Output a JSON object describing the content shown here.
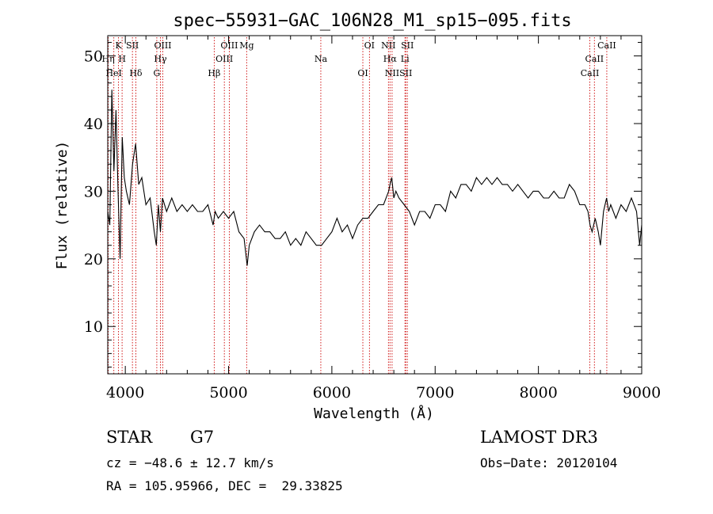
{
  "chart_data": {
    "type": "line",
    "title": "spec−55931−GAC_106N28_M1_sp15−095.fits",
    "xlabel": "Wavelength (Å)",
    "ylabel": "Flux (relative)",
    "xlim": [
      3830,
      9000
    ],
    "ylim": [
      3,
      53
    ],
    "xticks": [
      4000,
      5000,
      6000,
      7000,
      8000,
      9000
    ],
    "yticks": [
      10,
      20,
      30,
      40,
      50
    ],
    "grid": false,
    "legend": "none",
    "line_color": "#000000",
    "marker_color": "#cc0000",
    "series": [
      {
        "x": [
          3830,
          3850,
          3870,
          3890,
          3910,
          3930,
          3950,
          3970,
          3990,
          4010,
          4040,
          4070,
          4100,
          4130,
          4160,
          4200,
          4240,
          4280,
          4300,
          4320,
          4340,
          4360,
          4400,
          4450,
          4500,
          4550,
          4600,
          4650,
          4700,
          4750,
          4800,
          4850,
          4870,
          4900,
          4950,
          5000,
          5050,
          5100,
          5150,
          5180,
          5200,
          5250,
          5300,
          5350,
          5400,
          5450,
          5500,
          5550,
          5600,
          5650,
          5700,
          5750,
          5800,
          5850,
          5900,
          5950,
          6000,
          6050,
          6100,
          6150,
          6200,
          6250,
          6300,
          6350,
          6400,
          6450,
          6500,
          6550,
          6563,
          6580,
          6600,
          6620,
          6650,
          6700,
          6750,
          6800,
          6850,
          6900,
          6950,
          7000,
          7050,
          7100,
          7150,
          7200,
          7250,
          7300,
          7350,
          7400,
          7450,
          7500,
          7550,
          7600,
          7650,
          7700,
          7750,
          7800,
          7850,
          7900,
          7950,
          8000,
          8050,
          8100,
          8150,
          8200,
          8250,
          8300,
          8350,
          8400,
          8450,
          8480,
          8500,
          8520,
          8550,
          8580,
          8600,
          8630,
          8660,
          8680,
          8700,
          8750,
          8800,
          8850,
          8900,
          8950,
          8980,
          9000
        ],
        "y": [
          27,
          25,
          45,
          33,
          42,
          30,
          20,
          38,
          32,
          30,
          28,
          34,
          37,
          31,
          32,
          28,
          29,
          24,
          22,
          28,
          24,
          29,
          27,
          29,
          27,
          28,
          27,
          28,
          27,
          27,
          28,
          25,
          27,
          26,
          27,
          26,
          27,
          24,
          23,
          19,
          22,
          24,
          25,
          24,
          24,
          23,
          23,
          24,
          22,
          23,
          22,
          24,
          23,
          22,
          22,
          23,
          24,
          26,
          24,
          25,
          23,
          25,
          26,
          26,
          27,
          28,
          28,
          30,
          31,
          32,
          29,
          30,
          29,
          28,
          27,
          25,
          27,
          27,
          26,
          28,
          28,
          27,
          30,
          29,
          31,
          31,
          30,
          32,
          31,
          32,
          31,
          32,
          31,
          31,
          30,
          31,
          30,
          29,
          30,
          30,
          29,
          29,
          30,
          29,
          29,
          31,
          30,
          28,
          28,
          27,
          25,
          24,
          26,
          24,
          22,
          27,
          29,
          27,
          28,
          26,
          28,
          27,
          29,
          27,
          22,
          25
        ]
      }
    ],
    "lines": [
      {
        "name": "K",
        "x": 3934
      },
      {
        "name": "Hη",
        "x": 3835
      },
      {
        "name": "HeI",
        "x": 3889
      },
      {
        "name": "SII",
        "x": 4069
      },
      {
        "name": "H",
        "x": 3969
      },
      {
        "name": "Hδ",
        "x": 4102
      },
      {
        "name": "OIII",
        "x": 4363
      },
      {
        "name": "Hγ",
        "x": 4340
      },
      {
        "name": "G",
        "x": 4305
      },
      {
        "name": "OIII",
        "x": 5007
      },
      {
        "name": "OIII",
        "x": 4959
      },
      {
        "name": "Hβ",
        "x": 4861
      },
      {
        "name": "Mg",
        "x": 5175
      },
      {
        "name": "Na",
        "x": 5893
      },
      {
        "name": "OI",
        "x": 6300
      },
      {
        "name": "OI",
        "x": 6364
      },
      {
        "name": "Hα",
        "x": 6563
      },
      {
        "name": "SII",
        "x": 6716
      },
      {
        "name": "NII",
        "x": 6548
      },
      {
        "name": "Li",
        "x": 6708
      },
      {
        "name": "NII",
        "x": 6583
      },
      {
        "name": "SII",
        "x": 6731
      },
      {
        "name": "CaII",
        "x": 8542
      },
      {
        "name": "CaII",
        "x": 8498
      },
      {
        "name": "CaII",
        "x": 8662
      }
    ]
  },
  "info": {
    "class": "STAR",
    "subclass": "G7",
    "survey": "LAMOST DR3",
    "cz": "cz = −48.6 ± 12.7 km/s",
    "obs_date": "Obs−Date: 20120104",
    "radec": "RA = 105.95966, DEC =  29.33825"
  }
}
